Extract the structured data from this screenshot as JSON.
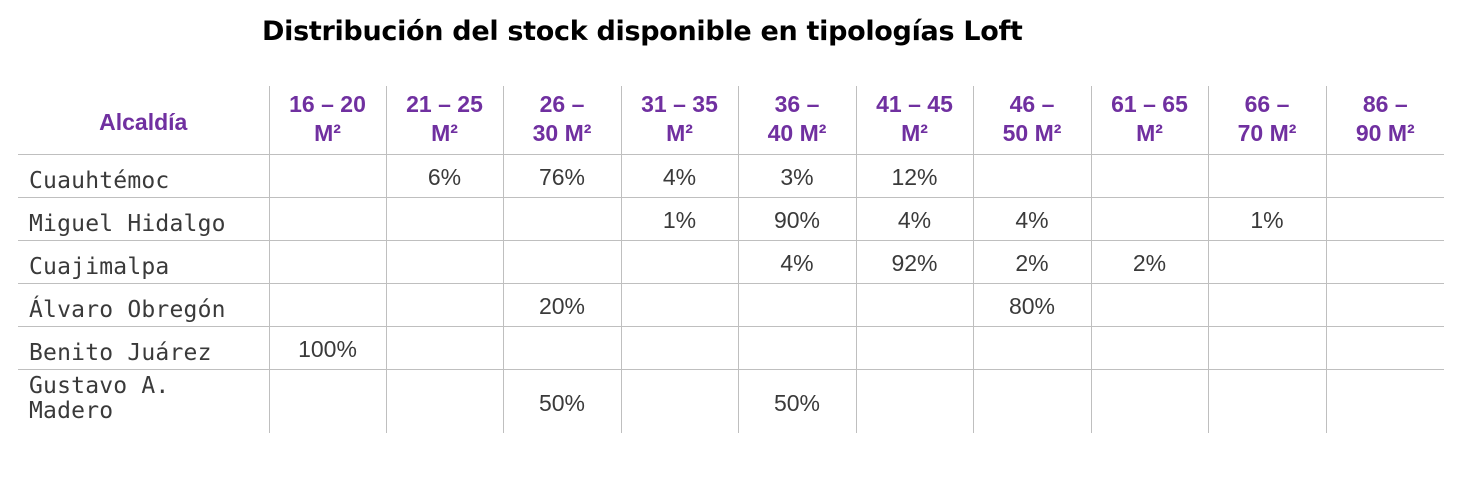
{
  "chart_data": {
    "type": "table",
    "title": "Distribución del stock disponible en tipologías Loft",
    "row_header": "Alcaldía",
    "columns": [
      {
        "top": "16 – 20",
        "bottom": "M²"
      },
      {
        "top": "21 – 25",
        "bottom": "M²"
      },
      {
        "top": "26 –",
        "bottom": "30 M²"
      },
      {
        "top": "31 – 35",
        "bottom": "M²"
      },
      {
        "top": "36 –",
        "bottom": "40 M²"
      },
      {
        "top": "41 – 45",
        "bottom": "M²"
      },
      {
        "top": "46 –",
        "bottom": "50 M²"
      },
      {
        "top": "61 – 65",
        "bottom": "M²"
      },
      {
        "top": "66 –",
        "bottom": "70 M²"
      },
      {
        "top": "86 –",
        "bottom": "90 M²"
      }
    ],
    "rows": [
      {
        "name": "Cuauhtémoc",
        "values": [
          "",
          "6%",
          "76%",
          "4%",
          "3%",
          "12%",
          "",
          "",
          "",
          ""
        ]
      },
      {
        "name": "Miguel Hidalgo",
        "values": [
          "",
          "",
          "",
          "1%",
          "90%",
          "4%",
          "4%",
          "",
          "1%",
          ""
        ]
      },
      {
        "name": "Cuajimalpa",
        "values": [
          "",
          "",
          "",
          "",
          "4%",
          "92%",
          "2%",
          "2%",
          "",
          ""
        ]
      },
      {
        "name": "Álvaro Obregón",
        "values": [
          "",
          "",
          "20%",
          "",
          "",
          "",
          "80%",
          "",
          "",
          ""
        ]
      },
      {
        "name": "Benito Juárez",
        "values": [
          "100%",
          "",
          "",
          "",
          "",
          "",
          "",
          "",
          "",
          ""
        ]
      },
      {
        "name": "Gustavo A. Madero",
        "values": [
          "",
          "",
          "50%",
          "",
          "50%",
          "",
          "",
          "",
          "",
          ""
        ]
      }
    ],
    "colors": {
      "header": "#7030a0",
      "text": "#3a3a3a",
      "rules": "#bfbfbf"
    }
  }
}
